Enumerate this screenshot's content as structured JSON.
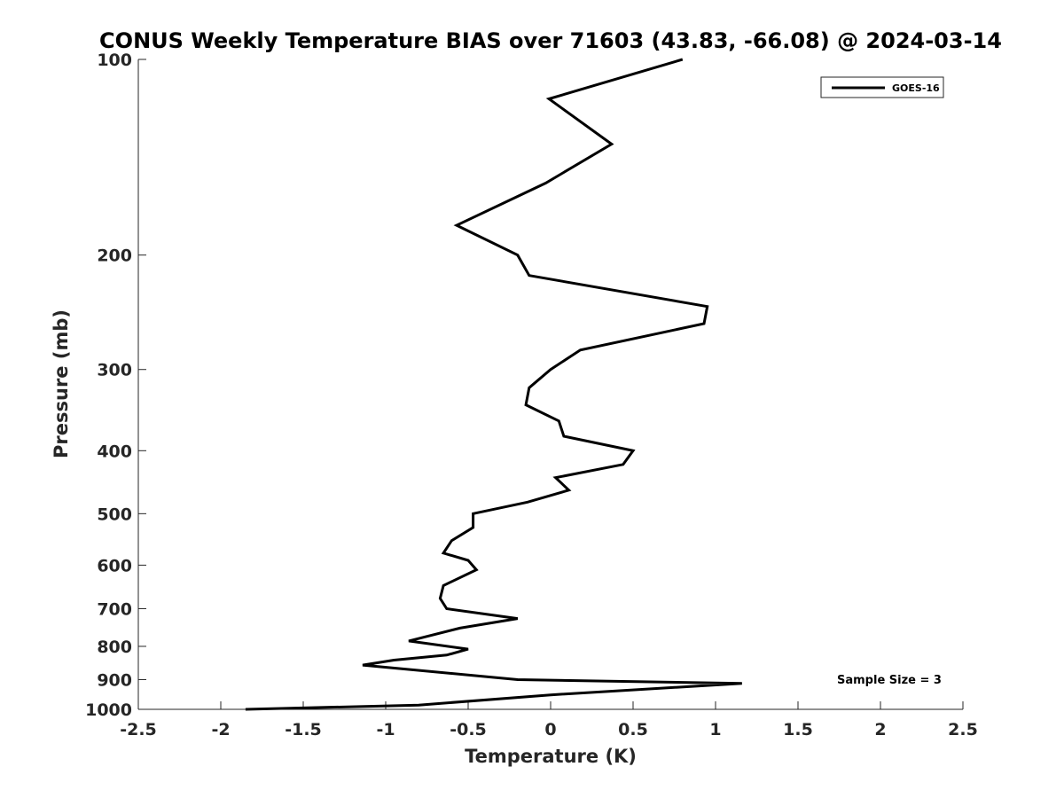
{
  "chart_data": {
    "type": "line",
    "title": "CONUS Weekly Temperature BIAS over 71603 (43.83, -66.08) @ 2024-03-14",
    "xlabel": "Temperature (K)",
    "ylabel": "Pressure (mb)",
    "xlim": [
      -2.5,
      2.5
    ],
    "ylim": [
      100,
      1000
    ],
    "y_scale": "log",
    "y_reversed": true,
    "x_ticks": [
      -2.5,
      -2,
      -1.5,
      -1,
      -0.5,
      0,
      0.5,
      1,
      1.5,
      2,
      2.5
    ],
    "x_tick_labels": [
      "-2.5",
      "-2",
      "-1.5",
      "-1",
      "-0.5",
      "0",
      "0.5",
      "1",
      "1.5",
      "2",
      "2.5"
    ],
    "y_ticks": [
      100,
      200,
      300,
      400,
      500,
      600,
      700,
      800,
      900,
      1000
    ],
    "y_tick_labels": [
      "100",
      "200",
      "300",
      "400",
      "500",
      "600",
      "700",
      "800",
      "900",
      "1000"
    ],
    "grid": false,
    "legend_position": "top-right",
    "line_color": "#000000",
    "series": [
      {
        "name": "GOES-16",
        "points": [
          {
            "x": 0.8,
            "p": 100
          },
          {
            "x": -0.01,
            "p": 115
          },
          {
            "x": 0.37,
            "p": 135
          },
          {
            "x": -0.03,
            "p": 155
          },
          {
            "x": -0.57,
            "p": 180
          },
          {
            "x": -0.2,
            "p": 200
          },
          {
            "x": -0.13,
            "p": 215
          },
          {
            "x": 0.95,
            "p": 240
          },
          {
            "x": 0.93,
            "p": 255
          },
          {
            "x": 0.18,
            "p": 280
          },
          {
            "x": 0.0,
            "p": 300
          },
          {
            "x": -0.13,
            "p": 320
          },
          {
            "x": -0.15,
            "p": 340
          },
          {
            "x": 0.05,
            "p": 360
          },
          {
            "x": 0.08,
            "p": 380
          },
          {
            "x": 0.5,
            "p": 400
          },
          {
            "x": 0.44,
            "p": 420
          },
          {
            "x": 0.03,
            "p": 440
          },
          {
            "x": 0.11,
            "p": 460
          },
          {
            "x": -0.14,
            "p": 480
          },
          {
            "x": -0.47,
            "p": 500
          },
          {
            "x": -0.47,
            "p": 525
          },
          {
            "x": -0.6,
            "p": 550
          },
          {
            "x": -0.65,
            "p": 575
          },
          {
            "x": -0.5,
            "p": 590
          },
          {
            "x": -0.45,
            "p": 610
          },
          {
            "x": -0.65,
            "p": 645
          },
          {
            "x": -0.67,
            "p": 675
          },
          {
            "x": -0.63,
            "p": 700
          },
          {
            "x": -0.2,
            "p": 725
          },
          {
            "x": -0.55,
            "p": 750
          },
          {
            "x": -0.86,
            "p": 785
          },
          {
            "x": -0.5,
            "p": 808
          },
          {
            "x": -0.63,
            "p": 825
          },
          {
            "x": -0.95,
            "p": 840
          },
          {
            "x": -1.14,
            "p": 855
          },
          {
            "x": -0.2,
            "p": 900
          },
          {
            "x": 1.16,
            "p": 912
          },
          {
            "x": 0.0,
            "p": 950
          },
          {
            "x": -0.8,
            "p": 985
          },
          {
            "x": -1.85,
            "p": 1000
          }
        ]
      }
    ],
    "annotation": "Sample Size = 3"
  }
}
